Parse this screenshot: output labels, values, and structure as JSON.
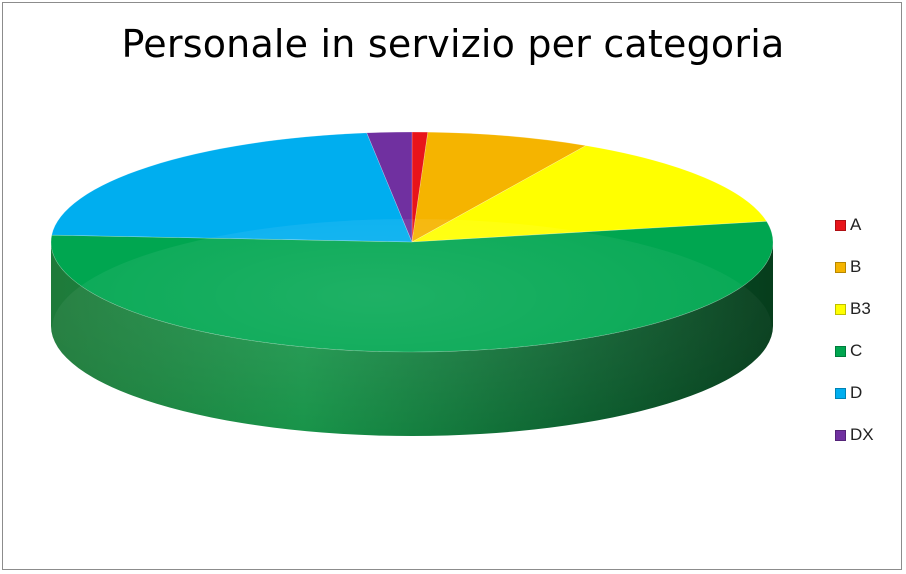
{
  "chart_data": {
    "type": "pie",
    "title": "Personale in servizio per categoria",
    "categories": [
      "A",
      "B",
      "B3",
      "C",
      "D",
      "DX"
    ],
    "values": [
      0.7,
      7.3,
      14.0,
      54.0,
      22.0,
      2.0
    ],
    "colors": [
      "#e8141a",
      "#f5b400",
      "#ffff00",
      "#00a650",
      "#00aeef",
      "#7030a0"
    ],
    "legend_position": "right",
    "three_d": true
  }
}
